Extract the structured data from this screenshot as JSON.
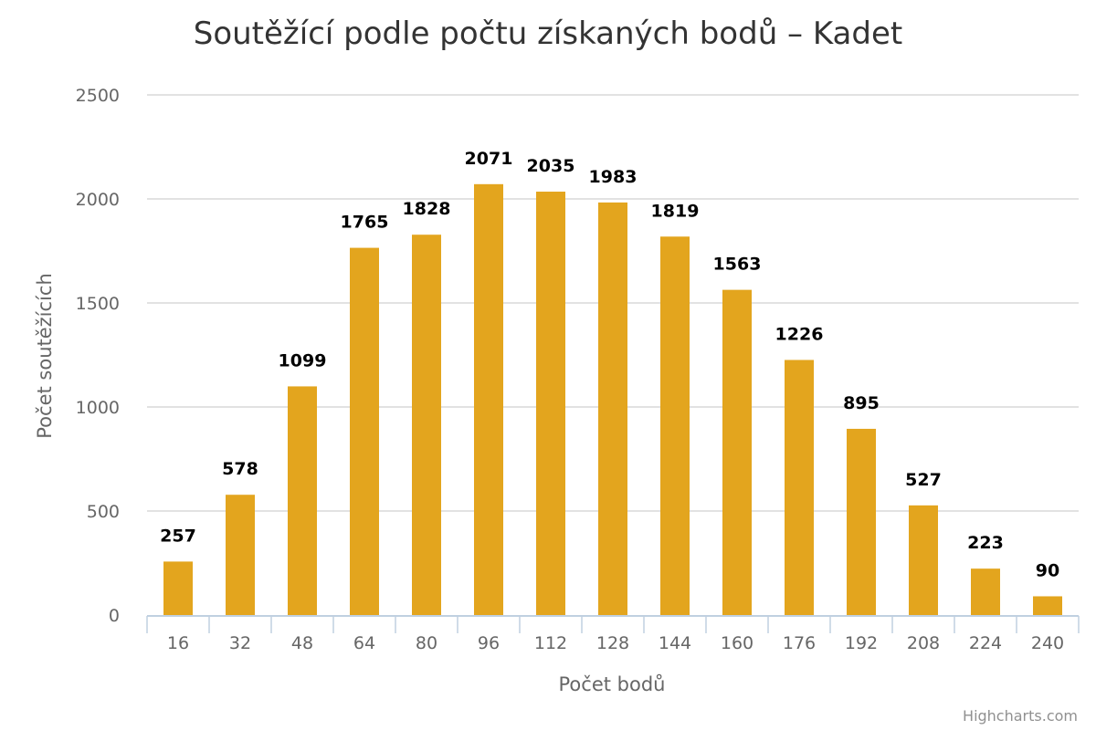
{
  "chart_data": {
    "type": "bar",
    "title": "Soutěžící podle počtu získaných bodů – Kadet",
    "xlabel": "Počet bodů",
    "ylabel": "Počet soutěžících",
    "categories": [
      "16",
      "32",
      "48",
      "64",
      "80",
      "96",
      "112",
      "128",
      "144",
      "160",
      "176",
      "192",
      "208",
      "224",
      "240"
    ],
    "values": [
      257,
      578,
      1099,
      1765,
      1828,
      2071,
      2035,
      1983,
      1819,
      1563,
      1226,
      895,
      527,
      223,
      90
    ],
    "ylim": [
      0,
      2500
    ],
    "yticks": [
      0,
      500,
      1000,
      1500,
      2000,
      2500
    ],
    "grid": true,
    "legend": "none",
    "bar_color": "#E3A51E",
    "credits": "Highcharts.com"
  }
}
